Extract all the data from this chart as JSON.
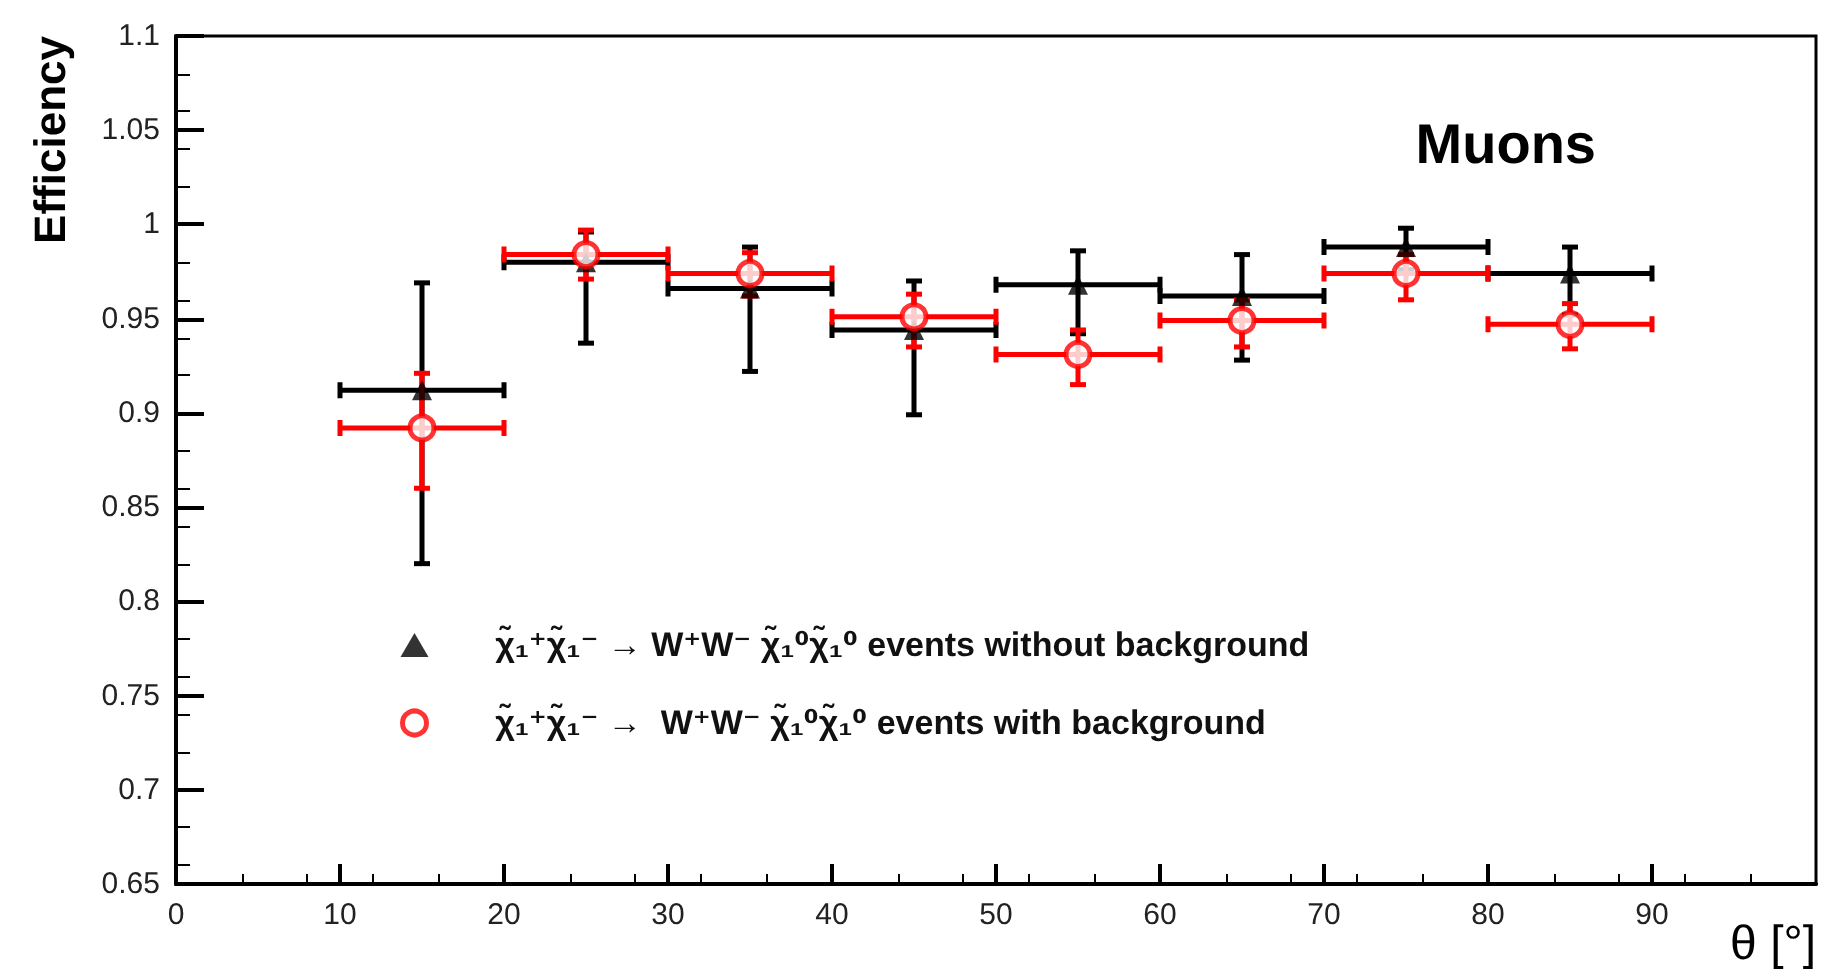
{
  "chart_data": {
    "type": "scatter",
    "xlabel": "θ [°]",
    "ylabel": "Efficiency",
    "annotations": [
      "Muons"
    ],
    "xlim": [
      0,
      100
    ],
    "xticks": [
      0,
      10,
      20,
      30,
      40,
      50,
      60,
      70,
      80,
      90
    ],
    "ylim": [
      0.65,
      1.1
    ],
    "yticks": [
      0.65,
      0.7,
      0.75,
      0.8,
      0.85,
      0.9,
      0.95,
      1,
      1.05,
      1.1
    ],
    "grid": false,
    "legend": "bottom left",
    "x": [
      15,
      25,
      35,
      45,
      55,
      65,
      75,
      85
    ],
    "series": [
      {
        "name": "χ̃₁⁺χ̃₁⁻ → W⁺W⁻ χ̃₁⁰χ̃₁⁰ events without background",
        "color": "#000000",
        "marker": "triangle",
        "values": [
          0.912,
          0.98,
          0.966,
          0.944,
          0.968,
          0.962,
          0.988,
          0.974
        ],
        "errors": [
          [
            0.82,
            0.969
          ],
          [
            0.937,
            0.996
          ],
          [
            0.922,
            0.988
          ],
          [
            0.899,
            0.97
          ],
          [
            0.942,
            0.986
          ],
          [
            0.928,
            0.984
          ],
          [
            0.976,
            0.998
          ],
          [
            0.952,
            0.988
          ]
        ],
        "xerrors": [
          5,
          5,
          5,
          5,
          5,
          5,
          5,
          5
        ]
      },
      {
        "name": "χ̃₁⁺χ̃₁⁻ →  W⁺W⁻ χ̃₁⁰χ̃₁⁰ events with background",
        "color": "#ff0000",
        "marker": "circle",
        "values": [
          0.892,
          0.984,
          0.974,
          0.951,
          0.931,
          0.949,
          0.974,
          0.947
        ],
        "errors": [
          [
            0.86,
            0.921
          ],
          [
            0.971,
            0.997
          ],
          [
            0.962,
            0.985
          ],
          [
            0.935,
            0.963
          ],
          [
            0.915,
            0.944
          ],
          [
            0.935,
            0.96
          ],
          [
            0.96,
            0.984
          ],
          [
            0.934,
            0.958
          ]
        ],
        "xerrors": [
          5,
          5,
          5,
          5,
          5,
          5,
          5,
          5
        ]
      }
    ]
  }
}
